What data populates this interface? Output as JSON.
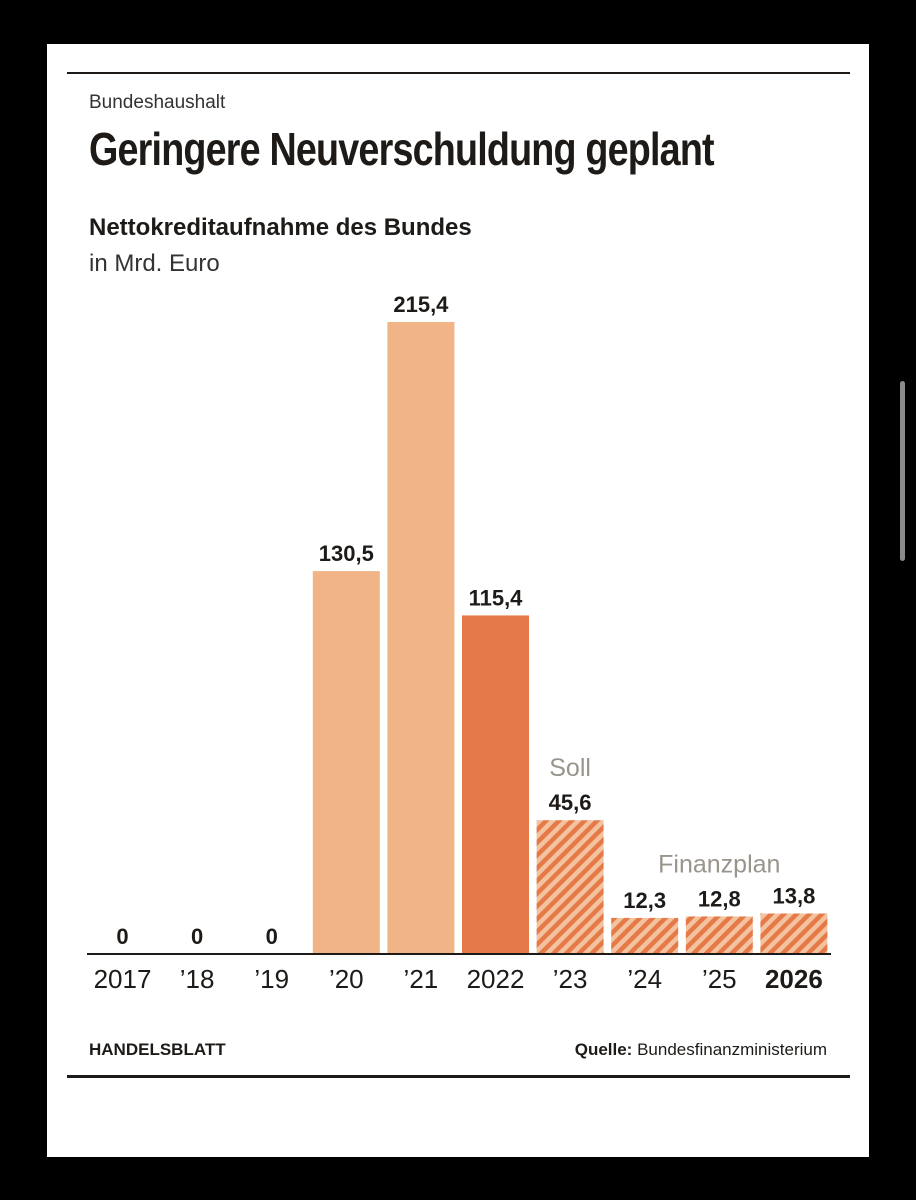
{
  "header": {
    "kicker": "Bundeshaushalt",
    "title": "Geringere Neuverschuldung geplant"
  },
  "chart_data": {
    "type": "bar",
    "title": "Nettokreditaufnahme des Bundes",
    "subtitle": "in Mrd. Euro",
    "categories": [
      "2017",
      "’18",
      "’19",
      "’20",
      "’21",
      "2022",
      "’23",
      "’24",
      "’25",
      "2026"
    ],
    "values": [
      0,
      0,
      0,
      130.5,
      215.4,
      115.4,
      45.6,
      12.3,
      12.8,
      13.8
    ],
    "value_labels": [
      "0",
      "0",
      "0",
      "130,5",
      "215,4",
      "115,4",
      "45,6",
      "12,3",
      "12,8",
      "13,8"
    ],
    "bar_styles": [
      "light",
      "light",
      "light",
      "light",
      "light",
      "dark",
      "hatched",
      "hatched",
      "hatched",
      "hatched"
    ],
    "bold_categories": [
      "2026"
    ],
    "annotations": [
      {
        "text": "Soll",
        "category": "’23"
      },
      {
        "text": "Finanzplan",
        "category": "’25"
      }
    ],
    "ylim": [
      0,
      215.4
    ],
    "grid": false,
    "colors": {
      "light": "#f0b487",
      "dark": "#e57a48",
      "hatch_base": "#f3c3a0",
      "hatch_stripe": "#e57a48",
      "annotation": "#9a948c",
      "text": "#1d1a17"
    }
  },
  "footer": {
    "brand": "HANDELSBLATT",
    "source_label": "Quelle:",
    "source_value": "Bundesfinanzministerium"
  }
}
